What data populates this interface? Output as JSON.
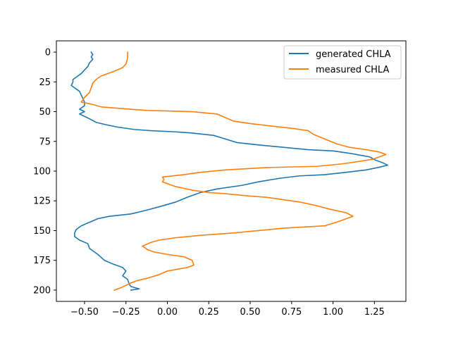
{
  "chart_data": {
    "type": "line",
    "title": "",
    "xlabel": "",
    "ylabel": "",
    "xlim": [
      -0.67,
      1.44
    ],
    "ylim": [
      209.5,
      -9.5
    ],
    "y_inverted": true,
    "grid": false,
    "legend_position": "upper right",
    "x_ticks": [
      -0.5,
      -0.25,
      0.0,
      0.25,
      0.5,
      0.75,
      1.0,
      1.25
    ],
    "x_tick_labels": [
      "−0.50",
      "−0.25",
      "0.00",
      "0.25",
      "0.50",
      "0.75",
      "1.00",
      "1.25"
    ],
    "y_ticks": [
      0,
      25,
      50,
      75,
      100,
      125,
      150,
      175,
      200
    ],
    "y_tick_labels": [
      "0",
      "25",
      "50",
      "75",
      "100",
      "125",
      "150",
      "175",
      "200"
    ],
    "series": [
      {
        "name": "generated CHLA",
        "color": "#1f77b4",
        "points": [
          [
            -0.46,
            0
          ],
          [
            -0.45,
            2
          ],
          [
            -0.46,
            4
          ],
          [
            -0.45,
            6
          ],
          [
            -0.47,
            9
          ],
          [
            -0.48,
            12
          ],
          [
            -0.5,
            15
          ],
          [
            -0.52,
            18
          ],
          [
            -0.54,
            20
          ],
          [
            -0.57,
            23
          ],
          [
            -0.57,
            25
          ],
          [
            -0.58,
            28
          ],
          [
            -0.55,
            31
          ],
          [
            -0.53,
            33
          ],
          [
            -0.52,
            36
          ],
          [
            -0.51,
            39
          ],
          [
            -0.5,
            42
          ],
          [
            -0.5,
            45
          ],
          [
            -0.53,
            48
          ],
          [
            -0.5,
            50
          ],
          [
            -0.53,
            52
          ],
          [
            -0.5,
            54
          ],
          [
            -0.47,
            56
          ],
          [
            -0.43,
            59
          ],
          [
            -0.37,
            61
          ],
          [
            -0.3,
            63
          ],
          [
            -0.2,
            65
          ],
          [
            -0.1,
            66
          ],
          [
            0.05,
            67
          ],
          [
            0.15,
            68
          ],
          [
            0.28,
            70
          ],
          [
            0.35,
            73
          ],
          [
            0.42,
            76
          ],
          [
            0.55,
            78
          ],
          [
            0.7,
            80
          ],
          [
            0.85,
            82
          ],
          [
            1.0,
            83
          ],
          [
            1.1,
            85
          ],
          [
            1.18,
            87
          ],
          [
            1.22,
            88
          ],
          [
            1.26,
            91
          ],
          [
            1.3,
            93
          ],
          [
            1.33,
            95
          ],
          [
            1.3,
            96
          ],
          [
            1.27,
            97
          ],
          [
            1.2,
            99
          ],
          [
            1.08,
            101
          ],
          [
            0.95,
            103
          ],
          [
            0.8,
            104
          ],
          [
            0.68,
            106
          ],
          [
            0.55,
            109
          ],
          [
            0.45,
            112
          ],
          [
            0.3,
            115
          ],
          [
            0.2,
            118
          ],
          [
            0.12,
            122
          ],
          [
            0.05,
            126
          ],
          [
            -0.05,
            130
          ],
          [
            -0.13,
            133
          ],
          [
            -0.22,
            136
          ],
          [
            -0.35,
            138
          ],
          [
            -0.42,
            140
          ],
          [
            -0.47,
            143
          ],
          [
            -0.52,
            146
          ],
          [
            -0.55,
            149
          ],
          [
            -0.56,
            152
          ],
          [
            -0.56,
            155
          ],
          [
            -0.53,
            158
          ],
          [
            -0.48,
            161
          ],
          [
            -0.47,
            165
          ],
          [
            -0.42,
            170
          ],
          [
            -0.38,
            175
          ],
          [
            -0.33,
            178
          ],
          [
            -0.27,
            181
          ],
          [
            -0.25,
            184
          ],
          [
            -0.27,
            188
          ],
          [
            -0.24,
            191
          ],
          [
            -0.23,
            195
          ],
          [
            -0.22,
            197
          ],
          [
            -0.17,
            199
          ],
          [
            -0.22,
            200
          ]
        ]
      },
      {
        "name": "measured CHLA",
        "color": "#ff7f0e",
        "points": [
          [
            -0.24,
            0
          ],
          [
            -0.24,
            5
          ],
          [
            -0.25,
            10
          ],
          [
            -0.27,
            13
          ],
          [
            -0.32,
            16
          ],
          [
            -0.4,
            20
          ],
          [
            -0.43,
            23
          ],
          [
            -0.45,
            26
          ],
          [
            -0.46,
            30
          ],
          [
            -0.47,
            34
          ],
          [
            -0.5,
            38
          ],
          [
            -0.52,
            42
          ],
          [
            -0.45,
            44
          ],
          [
            -0.4,
            46
          ],
          [
            -0.22,
            48
          ],
          [
            -0.12,
            49
          ],
          [
            0.15,
            50
          ],
          [
            0.3,
            52
          ],
          [
            0.35,
            55
          ],
          [
            0.4,
            58
          ],
          [
            0.5,
            60
          ],
          [
            0.62,
            62
          ],
          [
            0.75,
            64
          ],
          [
            0.85,
            66
          ],
          [
            0.88,
            69
          ],
          [
            0.95,
            73
          ],
          [
            1.02,
            77
          ],
          [
            1.1,
            80
          ],
          [
            1.2,
            82
          ],
          [
            1.28,
            84
          ],
          [
            1.32,
            86
          ],
          [
            1.28,
            88
          ],
          [
            1.24,
            90
          ],
          [
            1.15,
            92
          ],
          [
            1.05,
            94
          ],
          [
            0.9,
            96
          ],
          [
            0.6,
            97
          ],
          [
            0.35,
            99
          ],
          [
            0.2,
            101
          ],
          [
            0.1,
            103
          ],
          [
            -0.03,
            105
          ],
          [
            -0.02,
            107
          ],
          [
            -0.03,
            109
          ],
          [
            0.05,
            113
          ],
          [
            0.15,
            116
          ],
          [
            0.25,
            118
          ],
          [
            0.35,
            119
          ],
          [
            0.5,
            121
          ],
          [
            0.6,
            122
          ],
          [
            0.7,
            124
          ],
          [
            0.8,
            126
          ],
          [
            0.9,
            129
          ],
          [
            0.98,
            132
          ],
          [
            1.08,
            135
          ],
          [
            1.12,
            138
          ],
          [
            1.08,
            140
          ],
          [
            1.02,
            143
          ],
          [
            0.95,
            146
          ],
          [
            0.7,
            148
          ],
          [
            0.55,
            150
          ],
          [
            0.4,
            152
          ],
          [
            0.2,
            154
          ],
          [
            0.05,
            156
          ],
          [
            -0.05,
            158
          ],
          [
            -0.1,
            160
          ],
          [
            -0.15,
            163
          ],
          [
            -0.12,
            166
          ],
          [
            -0.08,
            168
          ],
          [
            0.0,
            170
          ],
          [
            0.1,
            172
          ],
          [
            0.15,
            175
          ],
          [
            0.16,
            179
          ],
          [
            0.12,
            181
          ],
          [
            0.0,
            184
          ],
          [
            -0.05,
            187
          ],
          [
            -0.12,
            190
          ],
          [
            -0.18,
            192
          ],
          [
            -0.22,
            194
          ],
          [
            -0.25,
            196
          ],
          [
            -0.28,
            198
          ],
          [
            -0.32,
            200
          ]
        ]
      }
    ]
  }
}
